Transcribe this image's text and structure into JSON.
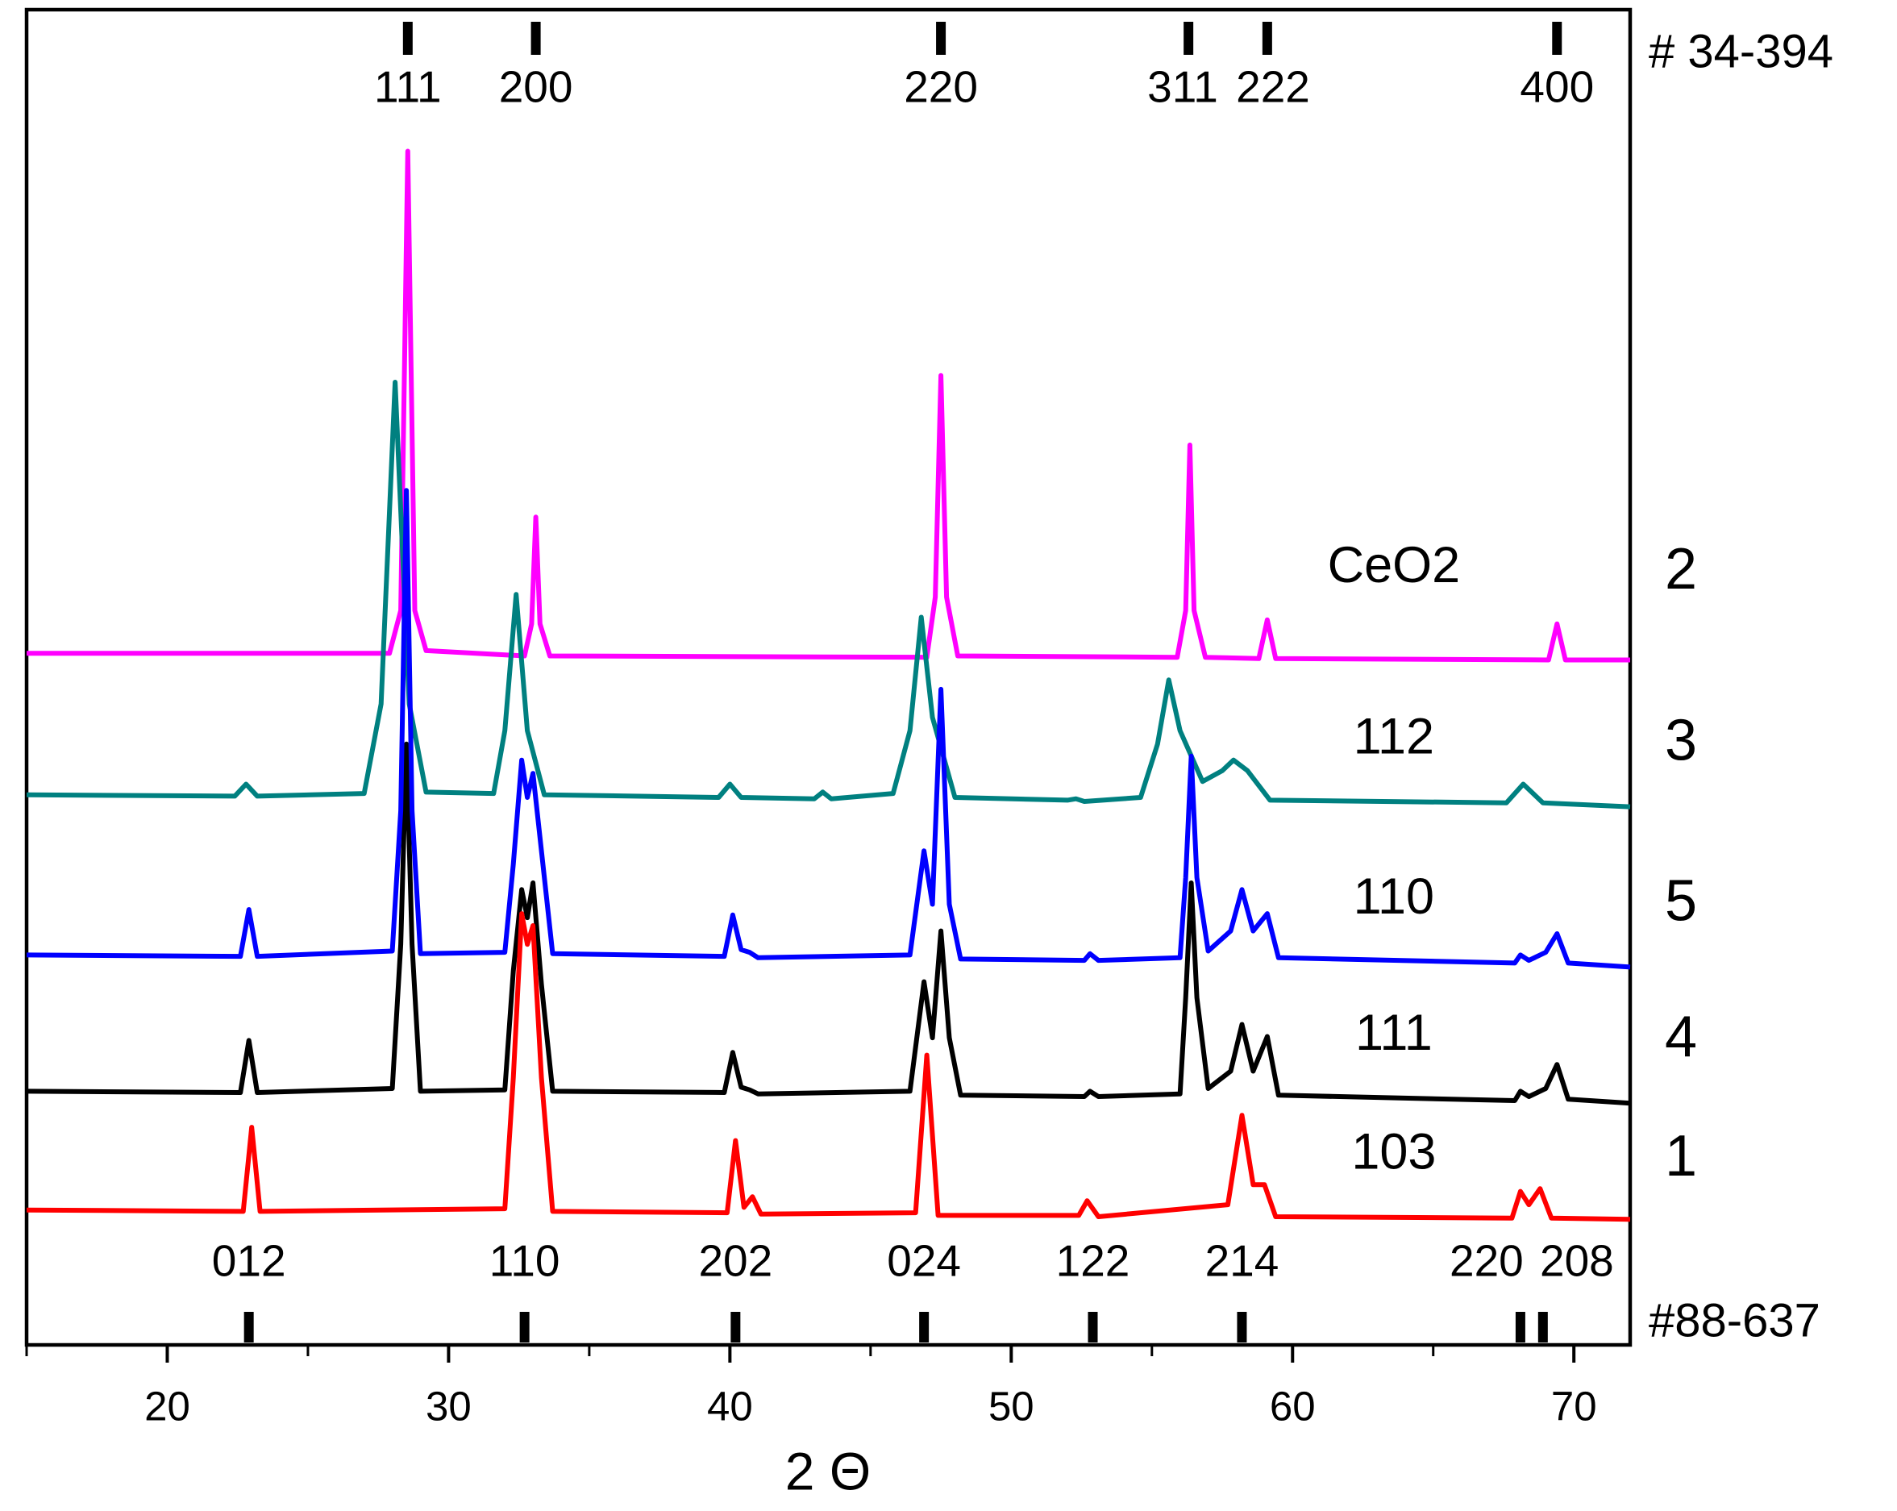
{
  "chart_data": {
    "type": "line",
    "x_label": "2 Θ",
    "xlim": [
      15,
      72
    ],
    "xticks": [
      20,
      30,
      40,
      50,
      60,
      70
    ],
    "xminor_ticks": [
      15,
      25,
      35,
      45,
      55,
      65
    ],
    "ylim": [
      0,
      100
    ],
    "series": [
      {
        "name": "CeO2",
        "sample": "2",
        "color": "#ff00ff",
        "x": [
          15,
          27.9,
          28.3,
          28.55,
          28.8,
          29.2,
          32.7,
          32.95,
          33.1,
          33.25,
          33.6,
          47.0,
          47.3,
          47.5,
          47.7,
          48.1,
          55.9,
          56.2,
          56.35,
          56.5,
          56.9,
          58.8,
          59.1,
          59.4,
          69.1,
          69.4,
          69.7,
          72
        ],
        "values": [
          51.8,
          51.8,
          55,
          89.4,
          55,
          52,
          51.6,
          54,
          62.0,
          54,
          51.6,
          51.5,
          56,
          72.6,
          56,
          51.6,
          51.5,
          55,
          67.4,
          55,
          51.5,
          51.4,
          54.3,
          51.4,
          51.3,
          54.0,
          51.3,
          51.3
        ]
      },
      {
        "name": "112",
        "sample": "3",
        "color": "#008080",
        "x": [
          15,
          22.4,
          22.8,
          23.2,
          27.0,
          27.6,
          28.1,
          28.6,
          29.2,
          31.6,
          32.0,
          32.4,
          32.8,
          33.4,
          39.6,
          40.0,
          40.4,
          43.0,
          43.3,
          43.6,
          45.8,
          46.4,
          46.8,
          47.2,
          48.0,
          52.0,
          52.3,
          52.6,
          54.6,
          55.2,
          55.6,
          56.0,
          56.8,
          57.5,
          57.9,
          58.4,
          59.2,
          67.6,
          68.2,
          68.9,
          72
        ],
        "values": [
          41.2,
          41.1,
          42.0,
          41.1,
          41.3,
          48,
          72.1,
          48,
          41.4,
          41.3,
          46,
          56.2,
          46,
          41.2,
          41.0,
          42.0,
          41.0,
          40.9,
          41.4,
          40.9,
          41.3,
          46,
          54.5,
          47,
          41.0,
          40.8,
          40.9,
          40.7,
          41.0,
          45,
          49.8,
          46,
          42.2,
          43,
          43.8,
          43,
          40.8,
          40.6,
          42.0,
          40.6,
          40.3
        ]
      },
      {
        "name": "111",
        "sample": "4",
        "color": "#000000",
        "x": [
          15,
          22.6,
          22.9,
          23.2,
          28.0,
          28.3,
          28.5,
          28.7,
          29.0,
          32.0,
          32.3,
          32.6,
          32.8,
          33.0,
          33.3,
          33.7,
          39.8,
          40.1,
          40.4,
          40.7,
          41.0,
          46.4,
          46.9,
          47.2,
          47.5,
          47.8,
          48.2,
          52.6,
          52.8,
          53.1,
          56.0,
          56.2,
          56.4,
          56.6,
          57.0,
          57.8,
          58.2,
          58.6,
          59.1,
          59.5,
          67.9,
          68.1,
          68.4,
          69.0,
          69.4,
          69.8,
          72
        ],
        "values": [
          19.0,
          18.9,
          22.8,
          18.9,
          19.2,
          30,
          45,
          30,
          19.0,
          19.1,
          28,
          34.1,
          32,
          34.6,
          27,
          19.0,
          18.9,
          21.9,
          19.3,
          19.1,
          18.8,
          19.0,
          27.2,
          23,
          31,
          23,
          18.7,
          18.6,
          19.0,
          18.6,
          18.8,
          26,
          34.6,
          26,
          19.2,
          20.5,
          24.0,
          20.5,
          23.1,
          18.7,
          18.3,
          19.0,
          18.6,
          19.2,
          21.0,
          18.4,
          18.1
        ]
      },
      {
        "name": "110",
        "sample": "5",
        "color": "#0000ff",
        "x": [
          15,
          22.6,
          22.9,
          23.2,
          28.0,
          28.3,
          28.5,
          28.7,
          29.0,
          32.0,
          32.3,
          32.6,
          32.8,
          33.0,
          33.3,
          33.7,
          39.8,
          40.1,
          40.4,
          40.7,
          41.0,
          46.4,
          46.9,
          47.2,
          47.5,
          47.8,
          48.2,
          52.6,
          52.8,
          53.1,
          56.0,
          56.2,
          56.4,
          56.6,
          57.0,
          57.8,
          58.2,
          58.6,
          59.1,
          59.5,
          67.9,
          68.1,
          68.4,
          69.0,
          69.4,
          69.8,
          72
        ],
        "values": [
          29.2,
          29.1,
          32.6,
          29.1,
          29.5,
          40,
          64.0,
          40,
          29.3,
          29.4,
          36,
          43.8,
          41,
          42.8,
          37,
          29.3,
          29.1,
          32.2,
          29.6,
          29.4,
          29.0,
          29.2,
          37.0,
          33,
          49.1,
          33,
          28.9,
          28.8,
          29.3,
          28.8,
          29.0,
          35,
          44.1,
          35,
          29.5,
          31,
          34.1,
          31,
          32.3,
          29.0,
          28.6,
          29.2,
          28.8,
          29.4,
          30.8,
          28.6,
          28.3
        ]
      },
      {
        "name": "103",
        "sample": "1",
        "color": "#ff0000",
        "x": [
          15,
          22.7,
          23.0,
          23.3,
          32.0,
          32.3,
          32.6,
          32.8,
          33.0,
          33.3,
          33.7,
          39.9,
          40.2,
          40.5,
          40.8,
          41.1,
          46.6,
          47.0,
          47.4,
          52.4,
          52.7,
          53.1,
          57.7,
          58.2,
          58.6,
          59.0,
          59.4,
          67.8,
          68.1,
          68.4,
          68.8,
          69.2,
          72
        ],
        "values": [
          10.1,
          10.0,
          16.3,
          10.0,
          10.2,
          20,
          32.3,
          30,
          31.4,
          20,
          10.0,
          9.9,
          15.3,
          10.3,
          11.1,
          9.8,
          9.9,
          21.7,
          9.7,
          9.7,
          10.8,
          9.6,
          10.5,
          17.2,
          12,
          12.0,
          9.6,
          9.5,
          11.5,
          10.5,
          11.7,
          9.5,
          9.4
        ]
      }
    ],
    "reference_patterns": [
      {
        "name": "# 34-394",
        "side": "top",
        "positions": [
          28.55,
          33.1,
          47.5,
          56.3,
          59.1,
          69.4
        ],
        "labels": [
          "111",
          "200",
          "220",
          "311",
          "222",
          "400"
        ]
      },
      {
        "name": "#88-637",
        "side": "bottom",
        "positions": [
          22.9,
          32.7,
          40.2,
          46.9,
          52.9,
          58.2,
          68.1,
          68.9
        ],
        "labels": [
          "012",
          "110",
          "202",
          "024",
          "122",
          "214",
          "220",
          "208"
        ]
      }
    ]
  }
}
